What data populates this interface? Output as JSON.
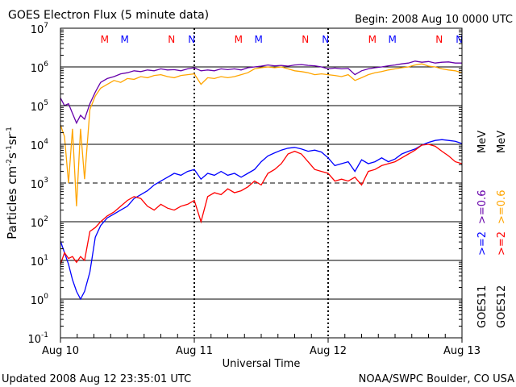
{
  "colors": {
    "background": "#ffffff",
    "axis": "#000000",
    "goes11_2mev": "#0000ff",
    "goes12_2mev": "#ff0000",
    "goes11_06mev": "#6600aa",
    "goes12_06mev": "#ffa500"
  },
  "chart_data": {
    "type": "line",
    "title": "GOES Electron Flux (5 minute data)",
    "begin_label": "Begin: 2008 Aug 10 0000 UTC",
    "xlabel": "Universal Time",
    "ylabel_parts": [
      "Particles cm",
      "-2",
      "s",
      "-1",
      "sr",
      "-1"
    ],
    "y_scale": "log",
    "ylim_exponents": [
      -1,
      7
    ],
    "y_ticks": [
      {
        "base": "10",
        "exp": "7",
        "log": 7
      },
      {
        "base": "10",
        "exp": "6",
        "log": 6
      },
      {
        "base": "10",
        "exp": "5",
        "log": 5
      },
      {
        "base": "10",
        "exp": "4",
        "log": 4
      },
      {
        "base": "10",
        "exp": "3",
        "log": 3
      },
      {
        "base": "10",
        "exp": "2",
        "log": 2
      },
      {
        "base": "10",
        "exp": "1",
        "log": 1
      },
      {
        "base": "10",
        "exp": "0",
        "log": 0
      },
      {
        "base": "10",
        "exp": "-1",
        "log": -1
      }
    ],
    "xlim_days": [
      0,
      3
    ],
    "x_ticks": [
      {
        "label": "Aug 10",
        "day": 0
      },
      {
        "label": "Aug 11",
        "day": 1
      },
      {
        "label": "Aug 12",
        "day": 2
      },
      {
        "label": "Aug 13",
        "day": 3
      }
    ],
    "gridlines_log": [
      6,
      5,
      4,
      2,
      1,
      0
    ],
    "threshold_log": 3,
    "midnight_noon_markers": [
      {
        "text": "M",
        "day": 0.33,
        "color": "#ff0000"
      },
      {
        "text": "M",
        "day": 0.48,
        "color": "#0000ff"
      },
      {
        "text": "N",
        "day": 0.83,
        "color": "#ff0000"
      },
      {
        "text": "N",
        "day": 0.98,
        "color": "#0000ff"
      },
      {
        "text": "M",
        "day": 1.33,
        "color": "#ff0000"
      },
      {
        "text": "M",
        "day": 1.48,
        "color": "#0000ff"
      },
      {
        "text": "N",
        "day": 1.83,
        "color": "#ff0000"
      },
      {
        "text": "N",
        "day": 1.98,
        "color": "#0000ff"
      },
      {
        "text": "M",
        "day": 2.33,
        "color": "#ff0000"
      },
      {
        "text": "M",
        "day": 2.48,
        "color": "#0000ff"
      },
      {
        "text": "N",
        "day": 2.83,
        "color": "#ff0000"
      },
      {
        "text": "N",
        "day": 2.98,
        "color": "#0000ff"
      }
    ],
    "legend": {
      "groups": [
        {
          "satellite": "GOES11",
          "items": [
            {
              "label": ">=2",
              "color": "#0000ff"
            },
            {
              "label": ">=0.6",
              "color": "#6600aa"
            }
          ]
        },
        {
          "satellite": "GOES12",
          "items": [
            {
              "label": ">=2",
              "color": "#ff0000"
            },
            {
              "label": ">=0.6",
              "color": "#ffa500"
            }
          ]
        }
      ],
      "unit": "MeV"
    },
    "series": [
      {
        "name": "GOES11 >=2 MeV",
        "color": "#0000ff",
        "x_days": [
          0,
          0.03,
          0.06,
          0.09,
          0.12,
          0.15,
          0.18,
          0.22,
          0.26,
          0.3,
          0.35,
          0.4,
          0.45,
          0.5,
          0.55,
          0.6,
          0.65,
          0.7,
          0.75,
          0.8,
          0.85,
          0.9,
          0.95,
          1.0,
          1.05,
          1.1,
          1.15,
          1.2,
          1.25,
          1.3,
          1.35,
          1.4,
          1.45,
          1.5,
          1.55,
          1.6,
          1.65,
          1.7,
          1.75,
          1.8,
          1.85,
          1.9,
          1.95,
          2.0,
          2.05,
          2.1,
          2.15,
          2.2,
          2.25,
          2.3,
          2.35,
          2.4,
          2.45,
          2.5,
          2.55,
          2.6,
          2.65,
          2.7,
          2.75,
          2.8,
          2.85,
          2.9,
          2.95,
          3.0
        ],
        "log_values": [
          1.5,
          1.2,
          0.9,
          0.5,
          0.2,
          0.0,
          0.2,
          0.7,
          1.6,
          1.9,
          2.1,
          2.2,
          2.3,
          2.4,
          2.6,
          2.7,
          2.8,
          2.95,
          3.05,
          3.15,
          3.25,
          3.2,
          3.3,
          3.35,
          3.1,
          3.25,
          3.2,
          3.3,
          3.2,
          3.25,
          3.15,
          3.25,
          3.35,
          3.55,
          3.7,
          3.78,
          3.85,
          3.9,
          3.92,
          3.88,
          3.82,
          3.85,
          3.8,
          3.65,
          3.45,
          3.5,
          3.55,
          3.3,
          3.6,
          3.5,
          3.55,
          3.65,
          3.55,
          3.62,
          3.75,
          3.82,
          3.88,
          3.98,
          4.05,
          4.1,
          4.12,
          4.1,
          4.08,
          4.02
        ]
      },
      {
        "name": "GOES12 >=2 MeV",
        "color": "#ff0000",
        "x_days": [
          0,
          0.03,
          0.06,
          0.09,
          0.12,
          0.15,
          0.18,
          0.22,
          0.26,
          0.3,
          0.35,
          0.4,
          0.45,
          0.5,
          0.55,
          0.6,
          0.65,
          0.7,
          0.75,
          0.8,
          0.85,
          0.9,
          0.95,
          1.0,
          1.05,
          1.1,
          1.15,
          1.2,
          1.25,
          1.3,
          1.35,
          1.4,
          1.45,
          1.5,
          1.55,
          1.6,
          1.65,
          1.7,
          1.75,
          1.8,
          1.85,
          1.9,
          1.95,
          2.0,
          2.05,
          2.1,
          2.15,
          2.2,
          2.25,
          2.3,
          2.35,
          2.4,
          2.45,
          2.5,
          2.55,
          2.6,
          2.65,
          2.7,
          2.75,
          2.8,
          2.85,
          2.9,
          2.95,
          3.0
        ],
        "log_values": [
          0.9,
          1.2,
          1.05,
          1.1,
          0.95,
          1.1,
          1.0,
          1.75,
          1.85,
          2.0,
          2.15,
          2.25,
          2.4,
          2.55,
          2.65,
          2.6,
          2.4,
          2.3,
          2.45,
          2.35,
          2.3,
          2.4,
          2.45,
          2.55,
          2.0,
          2.65,
          2.75,
          2.7,
          2.85,
          2.75,
          2.8,
          2.9,
          3.05,
          2.95,
          3.25,
          3.35,
          3.5,
          3.75,
          3.82,
          3.75,
          3.55,
          3.35,
          3.3,
          3.25,
          3.05,
          3.1,
          3.05,
          3.15,
          2.95,
          3.3,
          3.35,
          3.45,
          3.5,
          3.55,
          3.65,
          3.75,
          3.85,
          3.98,
          4.0,
          3.95,
          3.82,
          3.7,
          3.55,
          3.5
        ]
      },
      {
        "name": "GOES11 >=0.6 MeV",
        "color": "#6600aa",
        "x_days": [
          0,
          0.03,
          0.06,
          0.09,
          0.12,
          0.15,
          0.18,
          0.22,
          0.26,
          0.3,
          0.35,
          0.4,
          0.45,
          0.5,
          0.55,
          0.6,
          0.65,
          0.7,
          0.75,
          0.8,
          0.85,
          0.9,
          0.95,
          1.0,
          1.05,
          1.1,
          1.15,
          1.2,
          1.25,
          1.3,
          1.35,
          1.4,
          1.45,
          1.5,
          1.55,
          1.6,
          1.65,
          1.7,
          1.75,
          1.8,
          1.85,
          1.9,
          1.95,
          2.0,
          2.05,
          2.1,
          2.15,
          2.2,
          2.25,
          2.3,
          2.35,
          2.4,
          2.45,
          2.5,
          2.55,
          2.6,
          2.65,
          2.7,
          2.75,
          2.8,
          2.85,
          2.9,
          2.95,
          3.0
        ],
        "log_values": [
          5.2,
          5.0,
          5.05,
          4.8,
          4.55,
          4.75,
          4.65,
          5.05,
          5.35,
          5.6,
          5.7,
          5.75,
          5.82,
          5.85,
          5.9,
          5.88,
          5.92,
          5.9,
          5.95,
          5.92,
          5.93,
          5.9,
          5.95,
          5.98,
          5.9,
          5.92,
          5.9,
          5.95,
          5.93,
          5.95,
          5.92,
          5.98,
          6.0,
          6.02,
          6.05,
          6.03,
          6.04,
          6.02,
          6.05,
          6.06,
          6.04,
          6.03,
          6.0,
          5.95,
          5.97,
          5.95,
          5.96,
          5.8,
          5.9,
          5.95,
          5.98,
          6.0,
          6.03,
          6.05,
          6.08,
          6.1,
          6.15,
          6.12,
          6.14,
          6.1,
          6.12,
          6.13,
          6.1,
          6.1
        ]
      },
      {
        "name": "GOES12 >=0.6 MeV",
        "color": "#ffa500",
        "x_days": [
          0,
          0.03,
          0.06,
          0.09,
          0.12,
          0.15,
          0.18,
          0.22,
          0.26,
          0.3,
          0.35,
          0.4,
          0.45,
          0.5,
          0.55,
          0.6,
          0.65,
          0.7,
          0.75,
          0.8,
          0.85,
          0.9,
          0.95,
          1.0,
          1.05,
          1.1,
          1.15,
          1.2,
          1.25,
          1.3,
          1.35,
          1.4,
          1.45,
          1.5,
          1.55,
          1.6,
          1.65,
          1.7,
          1.75,
          1.8,
          1.85,
          1.9,
          1.95,
          2.0,
          2.05,
          2.1,
          2.15,
          2.2,
          2.25,
          2.3,
          2.35,
          2.4,
          2.45,
          2.5,
          2.55,
          2.6,
          2.65,
          2.7,
          2.75,
          2.8,
          2.85,
          2.9,
          2.95,
          3.0
        ],
        "log_values": [
          4.5,
          4.2,
          3.0,
          4.4,
          2.4,
          4.4,
          3.1,
          4.9,
          5.25,
          5.45,
          5.55,
          5.65,
          5.6,
          5.7,
          5.68,
          5.75,
          5.72,
          5.78,
          5.8,
          5.75,
          5.72,
          5.78,
          5.8,
          5.82,
          5.55,
          5.72,
          5.7,
          5.75,
          5.72,
          5.75,
          5.8,
          5.85,
          5.95,
          5.98,
          6.0,
          5.98,
          6.0,
          5.95,
          5.9,
          5.88,
          5.85,
          5.8,
          5.82,
          5.8,
          5.78,
          5.75,
          5.8,
          5.65,
          5.72,
          5.8,
          5.85,
          5.88,
          5.92,
          5.95,
          5.98,
          6.0,
          6.05,
          6.08,
          6.02,
          6.0,
          5.95,
          5.92,
          5.9,
          5.85
        ]
      }
    ]
  },
  "footer": {
    "updated": "Updated 2008 Aug 12 23:35:01 UTC",
    "source": "NOAA/SWPC Boulder, CO USA"
  }
}
